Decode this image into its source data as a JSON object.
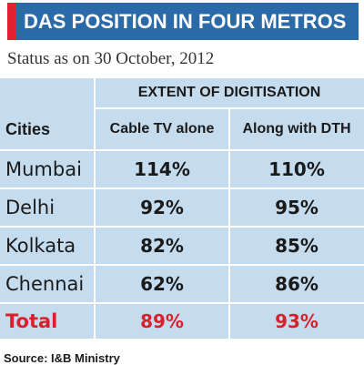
{
  "title": "DAS POSITION IN FOUR METROS",
  "subtitle": "Status as on 30 October, 2012",
  "source": "Source: I&B Ministry",
  "colors": {
    "title_bar": "#2b6aa8",
    "accent": "#e0232f",
    "table_bg": "#c5dcef",
    "total": "#d8222b"
  },
  "chart_data": {
    "type": "table",
    "group_header": "EXTENT OF DIGITISATION",
    "columns": [
      "Cities",
      "Cable TV alone",
      "Along with DTH"
    ],
    "rows": [
      [
        "Mumbai",
        "114%",
        "110%"
      ],
      [
        "Delhi",
        "92%",
        "95%"
      ],
      [
        "Kolkata",
        "82%",
        "85%"
      ],
      [
        "Chennai",
        "62%",
        "86%"
      ]
    ],
    "total": [
      "Total",
      "89%",
      "93%"
    ]
  }
}
